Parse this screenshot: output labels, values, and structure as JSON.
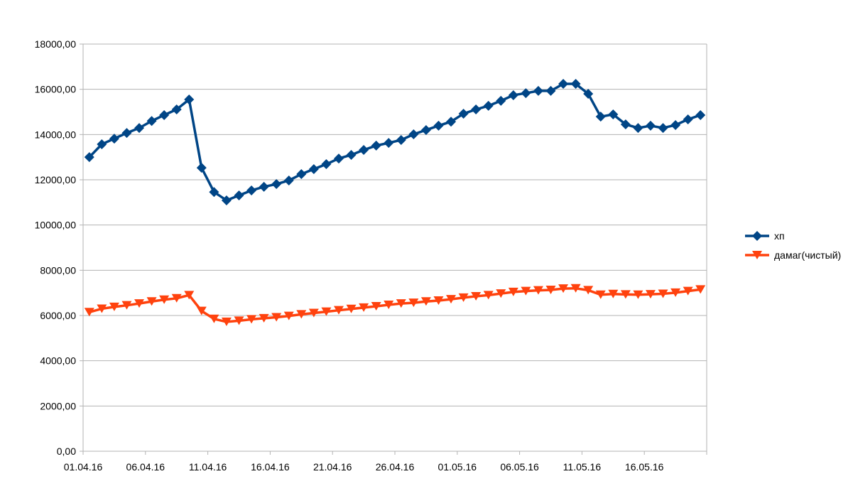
{
  "chart_data": {
    "type": "line",
    "title": "",
    "xlabel": "",
    "ylabel": "",
    "ylim": [
      0,
      18000
    ],
    "y_ticks": [
      "0,00",
      "2000,00",
      "4000,00",
      "6000,00",
      "8000,00",
      "10000,00",
      "12000,00",
      "14000,00",
      "16000,00",
      "18000,00"
    ],
    "x_tick_labels": [
      "01.04.16",
      "06.04.16",
      "11.04.16",
      "16.04.16",
      "21.04.16",
      "26.04.16",
      "01.05.16",
      "06.05.16",
      "11.05.16",
      "16.05.16"
    ],
    "category_count": 50,
    "grid": true,
    "legend_position": "right",
    "series": [
      {
        "name": "хп",
        "color": "#004586",
        "marker": "diamond",
        "values": [
          13000,
          13570,
          13820,
          14070,
          14290,
          14600,
          14860,
          15110,
          15550,
          12530,
          11460,
          11090,
          11310,
          11530,
          11690,
          11810,
          11970,
          12250,
          12470,
          12690,
          12940,
          13100,
          13320,
          13510,
          13630,
          13760,
          14010,
          14200,
          14390,
          14570,
          14920,
          15110,
          15270,
          15490,
          15740,
          15830,
          15930,
          15930,
          16240,
          16240,
          15800,
          14790,
          14890,
          14450,
          14290,
          14390,
          14290,
          14420,
          14670,
          14860
        ]
      },
      {
        "name": "дамаг(чистый)",
        "color": "#ff420e",
        "marker": "triangle-down",
        "values": [
          6150,
          6300,
          6380,
          6450,
          6530,
          6620,
          6700,
          6760,
          6900,
          6200,
          5850,
          5720,
          5770,
          5830,
          5880,
          5920,
          5980,
          6050,
          6110,
          6170,
          6230,
          6290,
          6350,
          6410,
          6470,
          6530,
          6560,
          6620,
          6660,
          6720,
          6790,
          6850,
          6900,
          6970,
          7040,
          7080,
          7110,
          7130,
          7190,
          7200,
          7120,
          6920,
          6950,
          6930,
          6920,
          6940,
          6960,
          7010,
          7080,
          7150
        ]
      }
    ]
  }
}
